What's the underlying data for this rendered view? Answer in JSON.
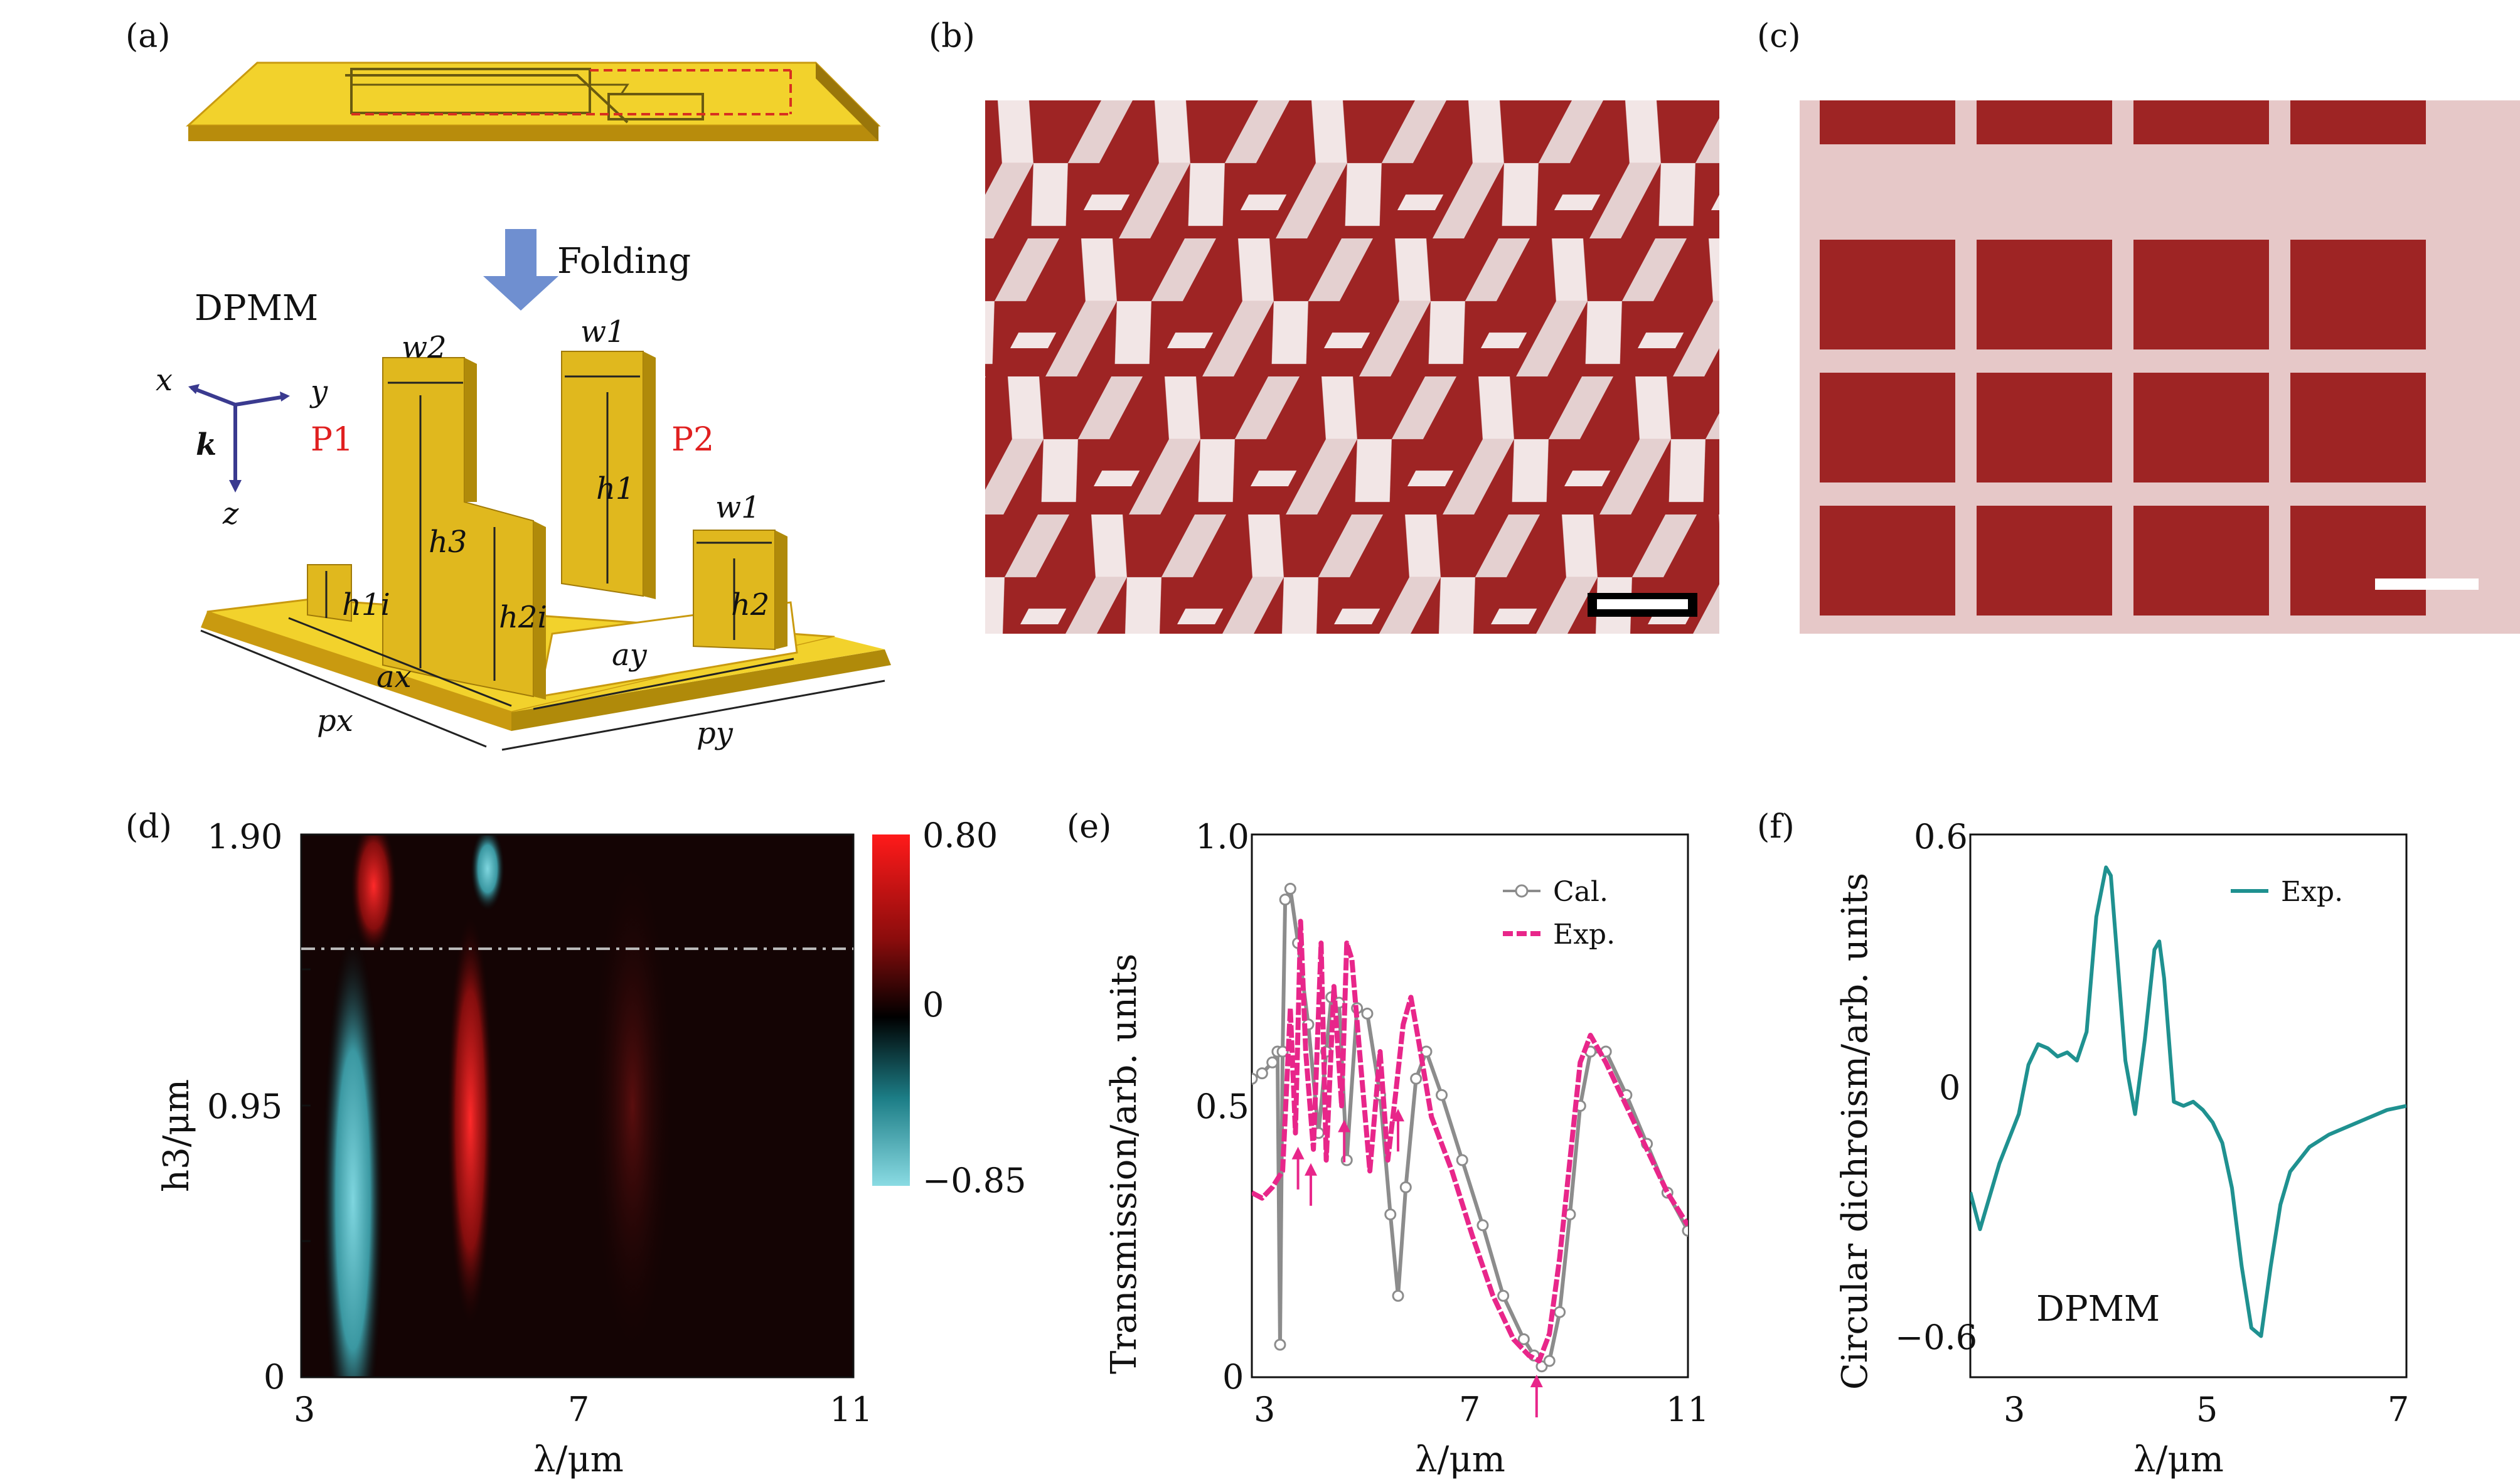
{
  "panels": [
    {
      "id": "a",
      "label": "(a)"
    },
    {
      "id": "b",
      "label": "(b)"
    },
    {
      "id": "c",
      "label": "(c)"
    },
    {
      "id": "d",
      "label": "(d)"
    },
    {
      "id": "e",
      "label": "(e)"
    },
    {
      "id": "f",
      "label": "(f)"
    }
  ],
  "panel_a": {
    "folding_label": "Folding",
    "structure_label": "DPMM",
    "p1_label": "P1",
    "p2_label": "P2",
    "axis_x": "x",
    "axis_y": "y",
    "axis_z": "z",
    "axis_k": "k",
    "dims": {
      "w2": "w2",
      "w1a": "w1",
      "w1b": "w1",
      "h1": "h1",
      "h2": "h2",
      "h3": "h3",
      "h1i": "h1i",
      "h2i": "h2i",
      "ax": "ax",
      "ay": "ay",
      "px": "px",
      "py": "py"
    },
    "colors": {
      "gold": "#e8c11c",
      "gold_side": "#c99a10",
      "plate": "#f2d22c",
      "arrow": "#6f8fd0",
      "p_label": "#e02020",
      "axis": "#3a3a8f"
    }
  },
  "panel_b": {
    "type": "sem-image",
    "colors": {
      "red": "#9e2424",
      "white": "#f2e6e6"
    }
  },
  "panel_c": {
    "type": "sem-image",
    "colors": {
      "red": "#9e2424",
      "frame": "#e6c8c8"
    }
  },
  "chart_data": [
    {
      "panel": "d",
      "type": "heatmap",
      "xlabel": "λ/μm",
      "ylabel": "h3/μm",
      "x_ticks": [
        "3",
        "7",
        "11"
      ],
      "y_ticks": [
        "0",
        "0.95",
        "1.90"
      ],
      "xlim": [
        3,
        11
      ],
      "ylim": [
        0,
        1.9
      ],
      "dash_line_y": 1.5,
      "colorbar": {
        "ticks": [
          "0.80",
          "0",
          "−0.85"
        ],
        "max": 0.8,
        "min": -0.85,
        "colors": [
          "#ff1a1a",
          "#000000",
          "#7fd6df"
        ]
      },
      "features": [
        {
          "type": "cyan",
          "x_center": 3.75,
          "y_center": 0.62,
          "x_halfwidth": 0.45,
          "y_halfheight": 0.95,
          "value": -0.8
        },
        {
          "type": "red",
          "x_center": 4.05,
          "y_center": 1.72,
          "x_halfwidth": 0.35,
          "y_halfheight": 0.25,
          "value": 0.8
        },
        {
          "type": "red",
          "x_center": 5.45,
          "y_center": 0.9,
          "x_halfwidth": 0.35,
          "y_halfheight": 0.75,
          "value": 0.55
        },
        {
          "type": "cyan",
          "x_center": 5.7,
          "y_center": 1.78,
          "x_halfwidth": 0.25,
          "y_halfheight": 0.15,
          "value": -0.5
        },
        {
          "type": "red",
          "x_center": 7.8,
          "y_center": 0.95,
          "x_halfwidth": 0.6,
          "y_halfheight": 0.9,
          "value": 0.2
        }
      ]
    },
    {
      "panel": "e",
      "type": "line",
      "xlabel": "λ/μm",
      "ylabel": "Transmission/arb. units",
      "x_ticks": [
        "3",
        "7",
        "11"
      ],
      "y_ticks": [
        "0",
        "0.5",
        "1.0"
      ],
      "xlim": [
        2.5,
        11
      ],
      "ylim": [
        0,
        1.0
      ],
      "series": [
        {
          "name": "Cal.",
          "color": "#8c8c8c",
          "marker": "circle",
          "x": [
            2.5,
            2.7,
            2.9,
            3.0,
            3.05,
            3.1,
            3.15,
            3.25,
            3.4,
            3.6,
            3.8,
            3.95,
            4.05,
            4.2,
            4.35,
            4.55,
            4.75,
            5.0,
            5.2,
            5.35,
            5.5,
            5.7,
            5.9,
            6.2,
            6.6,
            7.0,
            7.4,
            7.8,
            8.0,
            8.15,
            8.3,
            8.5,
            8.7,
            8.9,
            9.1,
            9.4,
            9.8,
            10.2,
            10.6,
            11.0
          ],
          "y": [
            0.55,
            0.56,
            0.58,
            0.6,
            0.06,
            0.6,
            0.88,
            0.9,
            0.8,
            0.65,
            0.45,
            0.6,
            0.7,
            0.69,
            0.4,
            0.68,
            0.67,
            0.52,
            0.3,
            0.15,
            0.35,
            0.55,
            0.6,
            0.52,
            0.4,
            0.28,
            0.15,
            0.07,
            0.04,
            0.02,
            0.03,
            0.12,
            0.3,
            0.5,
            0.6,
            0.6,
            0.52,
            0.43,
            0.34,
            0.27
          ]
        },
        {
          "name": "Exp.",
          "color": "#e8268a",
          "marker": "dash",
          "x": [
            2.5,
            2.7,
            2.9,
            3.1,
            3.25,
            3.35,
            3.45,
            3.55,
            3.7,
            3.85,
            3.95,
            4.1,
            4.25,
            4.35,
            4.45,
            4.6,
            4.8,
            5.0,
            5.15,
            5.3,
            5.45,
            5.6,
            5.75,
            6.0,
            6.4,
            6.8,
            7.2,
            7.6,
            7.9,
            8.1,
            8.3,
            8.5,
            8.7,
            8.9,
            9.1,
            9.4,
            9.8,
            10.2,
            10.6,
            11.0
          ],
          "y": [
            0.34,
            0.33,
            0.35,
            0.38,
            0.68,
            0.45,
            0.84,
            0.6,
            0.42,
            0.8,
            0.4,
            0.72,
            0.5,
            0.8,
            0.77,
            0.6,
            0.38,
            0.6,
            0.4,
            0.52,
            0.65,
            0.7,
            0.62,
            0.48,
            0.38,
            0.26,
            0.15,
            0.07,
            0.04,
            0.03,
            0.08,
            0.22,
            0.4,
            0.58,
            0.63,
            0.58,
            0.5,
            0.42,
            0.34,
            0.28
          ]
        }
      ],
      "arrows_x": [
        3.4,
        3.65,
        4.3,
        5.35,
        8.05
      ],
      "legend": "top-right"
    },
    {
      "panel": "f",
      "type": "line",
      "xlabel": "λ/μm",
      "ylabel": "Circular dichroism/arb. units",
      "x_ticks": [
        "3",
        "5",
        "7"
      ],
      "y_ticks": [
        "−0.6",
        "0",
        "0.6"
      ],
      "xlim": [
        2.5,
        7
      ],
      "ylim": [
        -0.72,
        0.6
      ],
      "series": [
        {
          "name": "Exp.",
          "color": "#1f9190",
          "x": [
            2.5,
            2.6,
            2.7,
            2.8,
            2.9,
            3.0,
            3.1,
            3.2,
            3.3,
            3.4,
            3.5,
            3.6,
            3.7,
            3.8,
            3.9,
            3.95,
            4.0,
            4.1,
            4.2,
            4.3,
            4.4,
            4.45,
            4.5,
            4.6,
            4.7,
            4.8,
            4.9,
            5.0,
            5.1,
            5.2,
            5.3,
            5.4,
            5.5,
            5.6,
            5.7,
            5.8,
            6.0,
            6.2,
            6.4,
            6.6,
            6.8,
            7.0
          ],
          "y": [
            -0.27,
            -0.36,
            -0.28,
            -0.2,
            -0.14,
            -0.08,
            0.04,
            0.09,
            0.08,
            0.06,
            0.07,
            0.05,
            0.12,
            0.4,
            0.52,
            0.5,
            0.35,
            0.05,
            -0.08,
            0.1,
            0.32,
            0.34,
            0.25,
            -0.05,
            -0.06,
            -0.05,
            -0.07,
            -0.1,
            -0.15,
            -0.26,
            -0.45,
            -0.6,
            -0.62,
            -0.45,
            -0.3,
            -0.22,
            -0.16,
            -0.13,
            -0.11,
            -0.09,
            -0.07,
            -0.06
          ]
        }
      ],
      "annotation": "DPMM",
      "legend": "top-right"
    }
  ]
}
